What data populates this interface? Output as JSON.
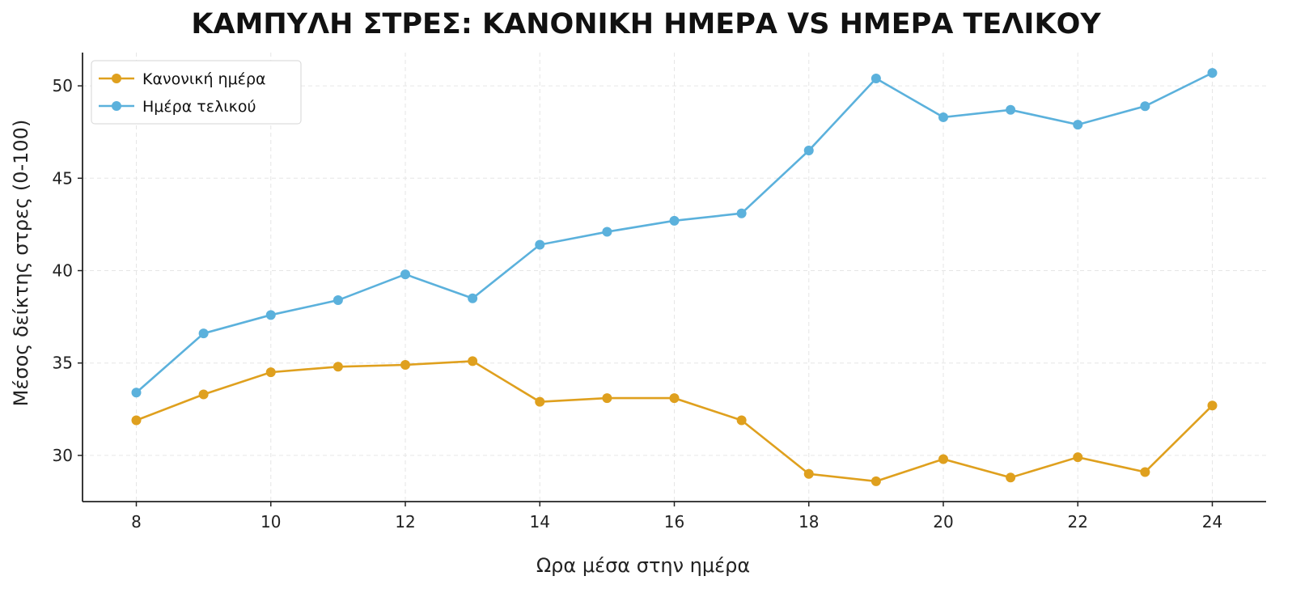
{
  "chart_data": {
    "type": "line",
    "title": "ΚΑΜΠΥΛΗ ΣΤΡΕΣ: ΚΑΝΟΝΙΚΗ ΗΜΕΡΑ VS ΗΜΕΡΑ ΤΕΛΙΚΟΥ",
    "xlabel": "Ωρα μέσα στην ημέρα",
    "ylabel": "Μέσος δείκτης στρες (0-100)",
    "x": [
      8,
      9,
      10,
      11,
      12,
      13,
      14,
      15,
      16,
      17,
      18,
      19,
      20,
      21,
      22,
      23,
      24
    ],
    "xticks": [
      8,
      10,
      12,
      14,
      16,
      18,
      20,
      22,
      24
    ],
    "yticks": [
      30,
      35,
      40,
      45,
      50
    ],
    "xlim": [
      7.2,
      24.8
    ],
    "ylim": [
      27.5,
      51.8
    ],
    "grid": true,
    "legend_position": "top-left",
    "series": [
      {
        "name": "Κανονική ημέρα",
        "color": "#DFA01E",
        "values": [
          31.9,
          33.3,
          34.5,
          34.8,
          34.9,
          35.1,
          32.9,
          33.1,
          33.1,
          31.9,
          29.0,
          28.6,
          29.8,
          28.8,
          29.9,
          29.1,
          32.7
        ]
      },
      {
        "name": "Ημέρα τελικού",
        "color": "#5BB1DC",
        "values": [
          33.4,
          36.6,
          37.6,
          38.4,
          39.8,
          38.5,
          41.4,
          42.1,
          42.7,
          43.1,
          46.5,
          50.4,
          48.3,
          48.7,
          47.9,
          48.9,
          50.7
        ]
      }
    ]
  }
}
